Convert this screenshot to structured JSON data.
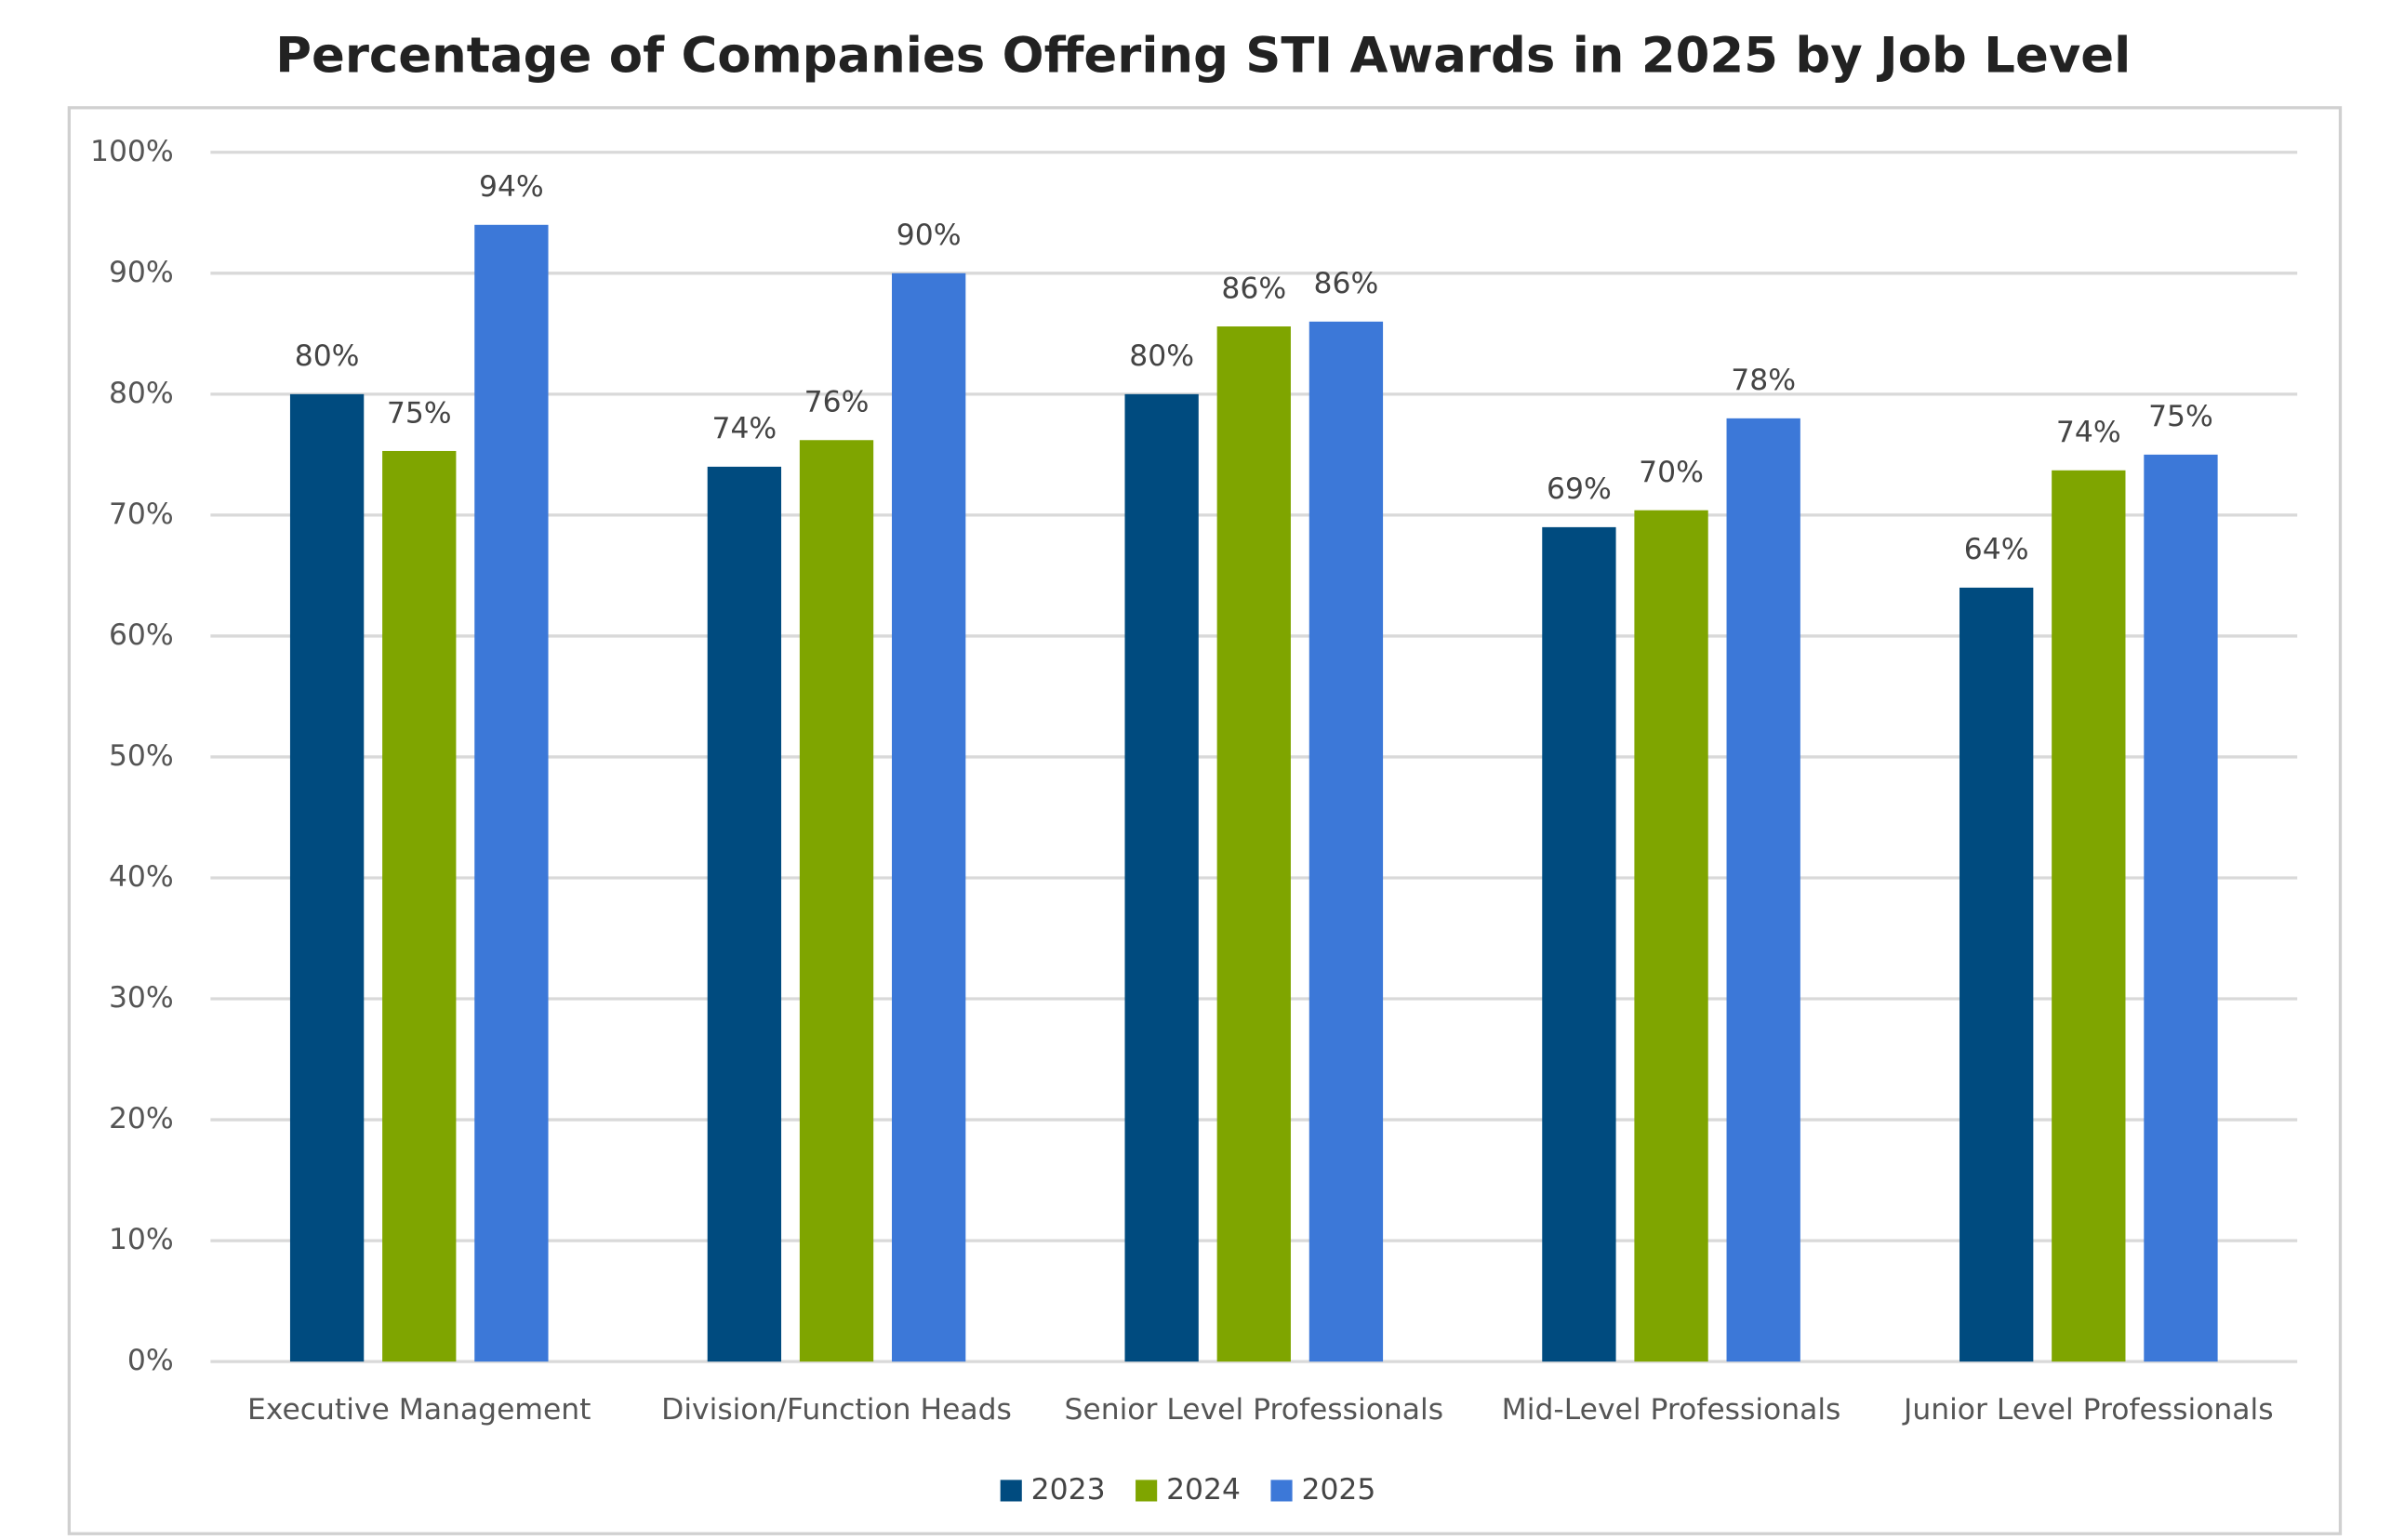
{
  "chart_data": {
    "type": "bar",
    "title": "Percentage of Companies Offering STI Awards in 2025 by Job Level",
    "categories": [
      "Executive Management",
      "Division/Function Heads",
      "Senior Level Professionals",
      "Mid-Level Professionals",
      "Junior Level Professionals"
    ],
    "series": [
      {
        "name": "2023",
        "color": "#004b7f",
        "values": [
          80,
          74,
          80,
          69,
          64
        ],
        "value_labels": [
          "80%",
          "74%",
          "80%",
          "69%",
          "64%"
        ]
      },
      {
        "name": "2024",
        "color": "#7fa500",
        "values": [
          75.3,
          76.2,
          85.6,
          70.4,
          73.7
        ],
        "value_labels": [
          "75%",
          "76%",
          "86%",
          "70%",
          "74%"
        ]
      },
      {
        "name": "2025",
        "color": "#3c78d8",
        "values": [
          94,
          90,
          86,
          78,
          75
        ],
        "value_labels": [
          "94%",
          "90%",
          "86%",
          "78%",
          "75%"
        ]
      }
    ],
    "ylim": [
      0,
      100
    ],
    "yticks": [
      {
        "value": 0,
        "label": "0%"
      },
      {
        "value": 10,
        "label": "10%"
      },
      {
        "value": 20,
        "label": "20%"
      },
      {
        "value": 30,
        "label": "30%"
      },
      {
        "value": 40,
        "label": "40%"
      },
      {
        "value": 50,
        "label": "50%"
      },
      {
        "value": 60,
        "label": "60%"
      },
      {
        "value": 70,
        "label": "70%"
      },
      {
        "value": 80,
        "label": "80%"
      },
      {
        "value": 90,
        "label": "90%"
      },
      {
        "value": 100,
        "label": "100%"
      }
    ],
    "grid": true,
    "legend": "bottom"
  }
}
